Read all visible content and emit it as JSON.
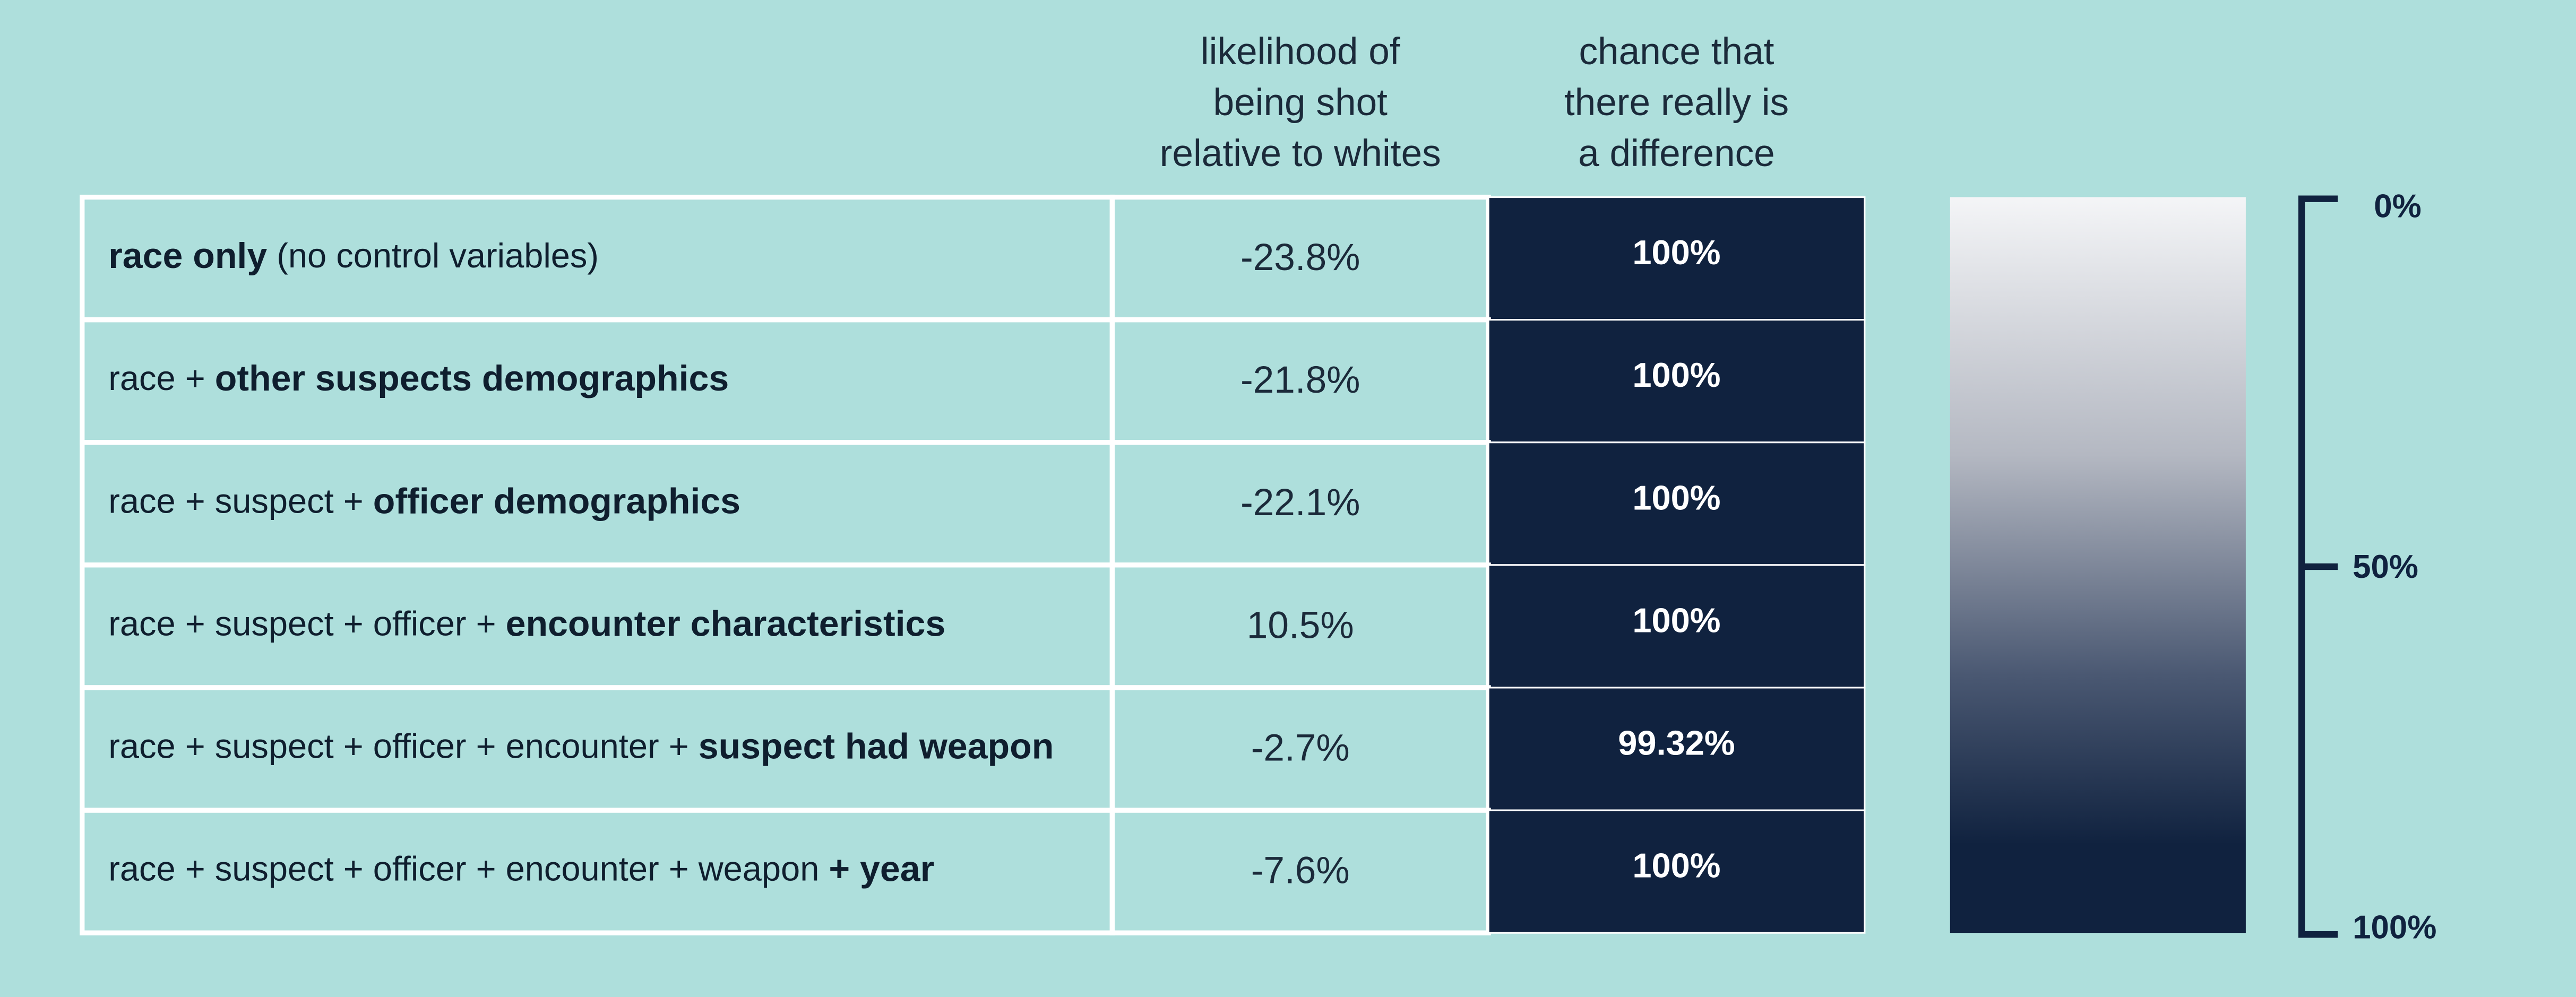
{
  "table": {
    "headers": [
      [
        "likelihood of",
        "being shot",
        "relative to whites"
      ],
      [
        "chance that",
        "there really is",
        "a difference"
      ]
    ],
    "rows": [
      {
        "label": [
          {
            "text": "race only",
            "bold": true
          },
          {
            "text": " (no control variables)",
            "bold": false
          }
        ],
        "likelihood": "-23.8%",
        "chance": "100%"
      },
      {
        "label": [
          {
            "text": "race + ",
            "bold": false
          },
          {
            "text": "other suspects demographics",
            "bold": true
          }
        ],
        "likelihood": "-21.8%",
        "chance": "100%"
      },
      {
        "label": [
          {
            "text": "race + suspect + ",
            "bold": false
          },
          {
            "text": "officer demographics",
            "bold": true
          }
        ],
        "likelihood": "-22.1%",
        "chance": "100%"
      },
      {
        "label": [
          {
            "text": "race + suspect + officer + ",
            "bold": false
          },
          {
            "text": "encounter characteristics",
            "bold": true
          }
        ],
        "likelihood": "10.5%",
        "chance": "100%"
      },
      {
        "label": [
          {
            "text": "race + suspect + officer + encounter + ",
            "bold": false
          },
          {
            "text": "suspect had weapon",
            "bold": true
          }
        ],
        "likelihood": "-2.7%",
        "chance": "99.32%"
      },
      {
        "label": [
          {
            "text": "race + suspect + officer + encounter + weapon ",
            "bold": false
          },
          {
            "text": "+ year",
            "bold": true
          }
        ],
        "likelihood": "-7.6%",
        "chance": "100%"
      }
    ]
  },
  "legend": {
    "ticks": [
      "0%",
      "50%",
      "100%"
    ]
  }
}
